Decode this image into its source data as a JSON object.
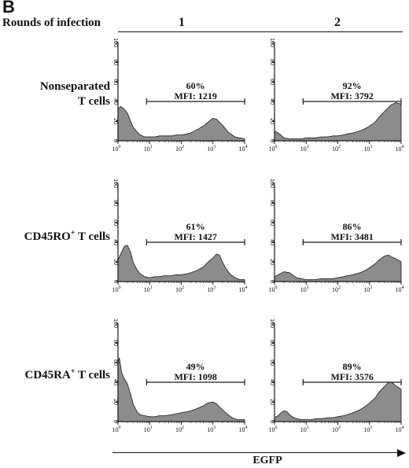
{
  "panel_label": "B",
  "rounds_title": "Rounds of infection",
  "round_labels": [
    "1",
    "2"
  ],
  "row_labels": [
    {
      "line1": "Nonseparated",
      "line2": "T cells"
    },
    {
      "prefix": "CD45RO",
      "sup": "+",
      "suffix": " T cells"
    },
    {
      "prefix": "CD45RA",
      "sup": "+",
      "suffix": " T cells"
    }
  ],
  "x_axis_label": "EGFP",
  "colors": {
    "fill": "#8c8c8c",
    "stroke": "#1a1a1a",
    "text": "#111111"
  },
  "chart_data": {
    "type": "area",
    "x_scale": "log",
    "xlim": [
      1,
      10000
    ],
    "ylim": [
      0,
      100
    ],
    "x_ticks": [
      1,
      10,
      100,
      1000,
      10000
    ],
    "x_tick_labels": [
      {
        "base": "10",
        "exp": "0"
      },
      {
        "base": "10",
        "exp": "1"
      },
      {
        "base": "10",
        "exp": "2"
      },
      {
        "base": "10",
        "exp": "3"
      },
      {
        "base": "10",
        "exp": "4"
      }
    ],
    "y_ticks": [
      0,
      20,
      40,
      60,
      80,
      100
    ],
    "gate_range": [
      8,
      10000
    ],
    "panels": [
      {
        "row": 0,
        "col": 0,
        "percent": "60%",
        "mfi": "MFI: 1219",
        "x": [
          1,
          1.2,
          1.5,
          2,
          2.5,
          3,
          4,
          5,
          7,
          10,
          15,
          20,
          30,
          50,
          70,
          100,
          150,
          200,
          300,
          500,
          700,
          1000,
          1300,
          1600,
          2000,
          2500,
          3000,
          4000,
          5000,
          7000,
          10000
        ],
        "y": [
          32,
          35,
          33,
          28,
          20,
          14,
          9,
          6,
          4,
          4,
          4,
          5,
          5,
          5,
          6,
          6,
          7,
          8,
          11,
          15,
          19,
          23,
          22,
          19,
          16,
          12,
          9,
          6,
          4,
          3,
          2
        ]
      },
      {
        "row": 0,
        "col": 1,
        "percent": "92%",
        "mfi": "MFI: 3792",
        "x": [
          1,
          1.3,
          1.7,
          2,
          3,
          4,
          5,
          7,
          10,
          15,
          20,
          30,
          50,
          70,
          100,
          150,
          200,
          300,
          500,
          700,
          1000,
          1500,
          2000,
          3000,
          4000,
          5000,
          6000,
          7000,
          8000,
          9000,
          10000
        ],
        "y": [
          10,
          8,
          5,
          3,
          2,
          2,
          2,
          2,
          3,
          3,
          3,
          4,
          4,
          5,
          5,
          6,
          7,
          8,
          10,
          12,
          15,
          19,
          24,
          30,
          34,
          37,
          38,
          39,
          38,
          38,
          36
        ]
      },
      {
        "row": 1,
        "col": 0,
        "percent": "61%",
        "mfi": "MFI: 1427",
        "x": [
          1,
          1.3,
          1.6,
          2,
          2.5,
          3,
          4,
          5,
          7,
          10,
          15,
          20,
          30,
          50,
          70,
          100,
          150,
          200,
          300,
          500,
          700,
          1000,
          1300,
          1600,
          2000,
          2500,
          3000,
          4000,
          5000,
          7000,
          10000
        ],
        "y": [
          22,
          30,
          36,
          37,
          30,
          20,
          12,
          8,
          5,
          4,
          5,
          5,
          6,
          6,
          7,
          7,
          8,
          9,
          11,
          15,
          20,
          24,
          28,
          27,
          20,
          14,
          10,
          6,
          4,
          2,
          2
        ]
      },
      {
        "row": 1,
        "col": 1,
        "percent": "86%",
        "mfi": "MFI: 3481",
        "x": [
          1,
          1.3,
          1.7,
          2,
          3,
          4,
          5,
          7,
          10,
          15,
          20,
          30,
          50,
          70,
          100,
          150,
          200,
          300,
          500,
          700,
          1000,
          1500,
          2000,
          3000,
          4000,
          5000,
          6000,
          7000,
          8000,
          9000,
          10000
        ],
        "y": [
          5,
          7,
          9,
          10,
          9,
          6,
          4,
          3,
          2,
          2,
          2,
          3,
          3,
          3,
          4,
          5,
          6,
          7,
          9,
          11,
          14,
          18,
          22,
          26,
          27,
          25,
          24,
          23,
          22,
          21,
          20
        ]
      },
      {
        "row": 2,
        "col": 0,
        "percent": "49%",
        "mfi": "MFI: 1098",
        "x": [
          1,
          1.1,
          1.3,
          1.5,
          1.7,
          2,
          2.5,
          3,
          4,
          5,
          7,
          10,
          15,
          20,
          30,
          50,
          70,
          100,
          150,
          200,
          300,
          500,
          700,
          1000,
          1300,
          1600,
          2000,
          3000,
          4000,
          6000,
          10000
        ],
        "y": [
          60,
          65,
          50,
          45,
          42,
          38,
          28,
          18,
          10,
          7,
          6,
          5,
          5,
          6,
          6,
          7,
          8,
          9,
          10,
          11,
          13,
          16,
          19,
          20,
          18,
          15,
          12,
          7,
          4,
          2,
          2
        ]
      },
      {
        "row": 2,
        "col": 1,
        "percent": "89%",
        "mfi": "MFI: 3576",
        "x": [
          1,
          1.3,
          1.6,
          2,
          2.5,
          3,
          4,
          5,
          7,
          10,
          15,
          20,
          30,
          50,
          70,
          100,
          150,
          200,
          300,
          500,
          700,
          1000,
          1500,
          2000,
          3000,
          4000,
          5000,
          6000,
          7000,
          8000,
          10000
        ],
        "y": [
          4,
          6,
          9,
          11,
          10,
          7,
          4,
          3,
          2,
          2,
          2,
          3,
          3,
          4,
          4,
          5,
          6,
          7,
          9,
          12,
          15,
          19,
          24,
          30,
          36,
          40,
          40,
          38,
          36,
          35,
          33
        ]
      }
    ]
  }
}
